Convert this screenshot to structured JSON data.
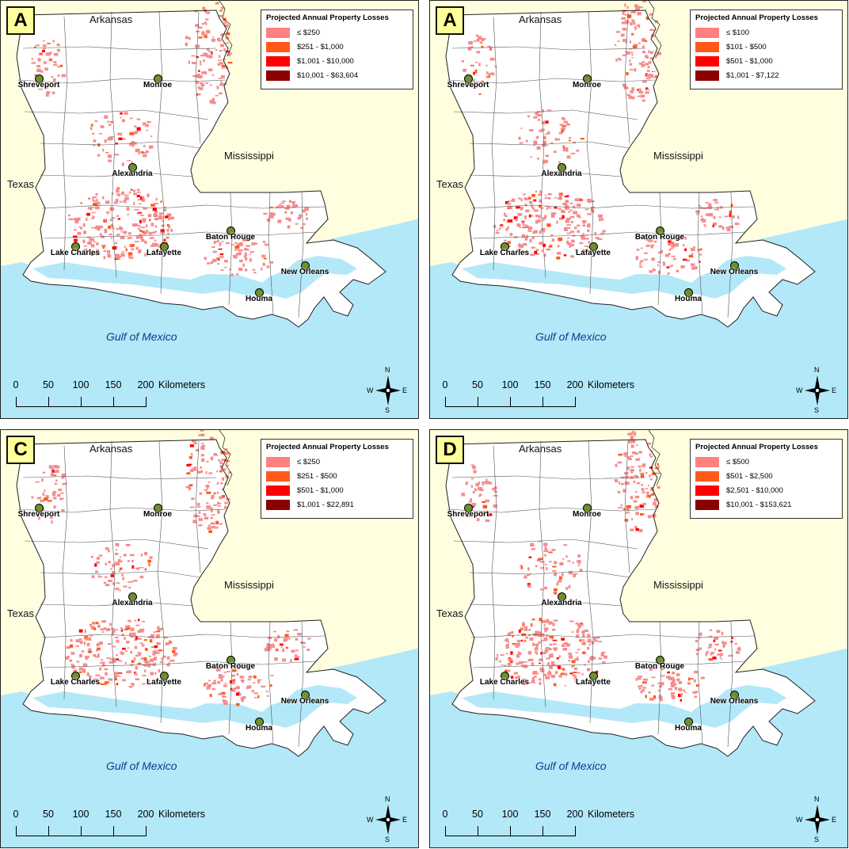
{
  "legend_title": "Projected Annual Property Losses",
  "legend_colors": [
    "#ff8080",
    "#ff5a1a",
    "#ff0000",
    "#8b0000"
  ],
  "land_colors": {
    "neighbor": "#ffffe0",
    "louisiana": "#ffffff",
    "water": "#b3e8f8",
    "loss": "#f58c8c"
  },
  "labels": {
    "arkansas": "Arkansas",
    "mississippi": "Mississippi",
    "texas": "Texas",
    "gulf": "Gulf of Mexico"
  },
  "cities": {
    "shreveport": "Shreveport",
    "monroe": "Monroe",
    "alexandria": "Alexandria",
    "baton_rouge": "Baton Rouge",
    "lake_charles": "Lake Charles",
    "lafayette": "Lafayette",
    "new_orleans": "New Orleans",
    "houma": "Houma"
  },
  "scale": {
    "ticks": [
      "0",
      "50",
      "100",
      "150",
      "200"
    ],
    "unit": "Kilometers"
  },
  "compass": {
    "n": "N",
    "s": "S",
    "e": "E",
    "w": "W"
  },
  "panels": [
    {
      "letter": "A",
      "classes": [
        "≤ $250",
        "$251 - $1,000",
        "$1,001 - $10,000",
        "$10,001 - $63,604"
      ]
    },
    {
      "letter": "A",
      "classes": [
        "≤ $100",
        "$101 - $500",
        "$501 - $1,000",
        "$1,001 - $7,122"
      ]
    },
    {
      "letter": "C",
      "classes": [
        "≤ $250",
        "$251 - $500",
        "$501 - $1,000",
        "$1,001 - $22,891"
      ]
    },
    {
      "letter": "D",
      "classes": [
        "≤ $500",
        "$501 - $2,500",
        "$2,501 - $10,000",
        "$10,001 - $153,621"
      ]
    }
  ]
}
